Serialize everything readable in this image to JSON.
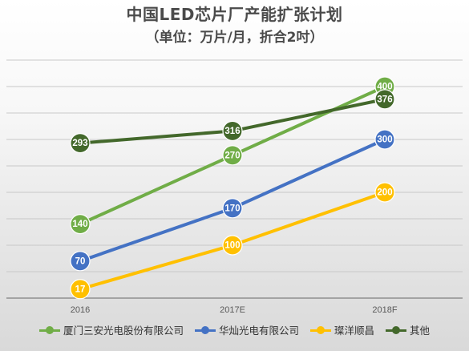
{
  "title": "中国LED芯片厂产能扩张计划",
  "subtitle": "（单位：万片/月，折合2吋）",
  "chart_data": {
    "type": "line",
    "categories": [
      "2016",
      "2017E",
      "2018F"
    ],
    "series": [
      {
        "name": "厦门三安光电股份有限公司",
        "values": [
          140,
          270,
          400
        ],
        "color": "#70ad47"
      },
      {
        "name": "华灿光电有限公司",
        "values": [
          70,
          170,
          300
        ],
        "color": "#4472c4"
      },
      {
        "name": "璨洋顺昌",
        "values": [
          17,
          100,
          200
        ],
        "color": "#ffc000"
      },
      {
        "name": "其他",
        "values": [
          293,
          316,
          376
        ],
        "color": "#43682b"
      }
    ],
    "ylim": [
      0,
      450
    ],
    "grid": true,
    "legend_position": "bottom"
  }
}
